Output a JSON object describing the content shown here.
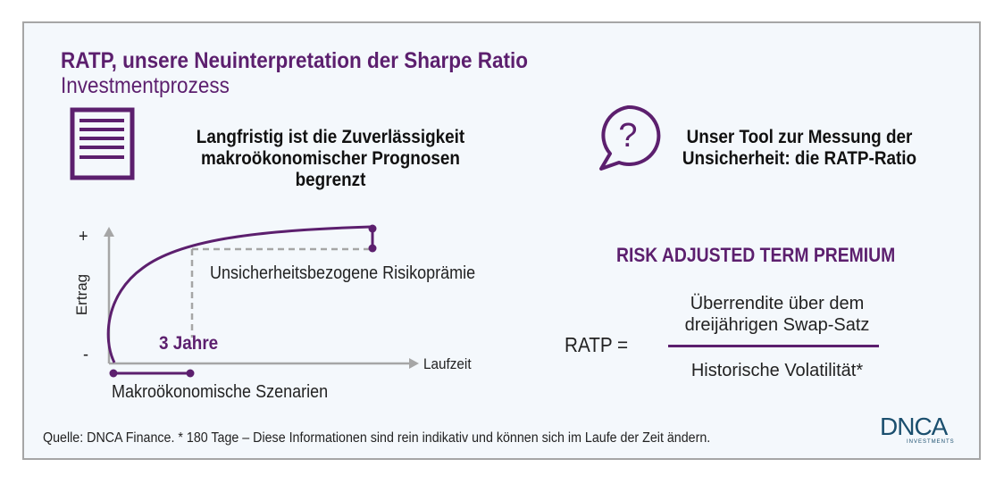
{
  "header": {
    "title": "RATP, unsere Neuinterpretation der Sharpe Ratio",
    "subtitle": "Investmentprozess"
  },
  "left_block": {
    "icon": "document-lines-icon",
    "text_line1": "Langfristig ist die Zuverlässigkeit",
    "text_line2": "makroökonomischer Prognosen begrenzt"
  },
  "right_block": {
    "icon": "question-speech-bubble-icon",
    "text_line1": "Unser Tool zur Messung der",
    "text_line2": "Unsicherheit: die RATP-Ratio"
  },
  "diagram": {
    "y_axis_label": "Ertrag",
    "y_plus": "+",
    "y_minus": "-",
    "x_axis_label": "Laufzeit",
    "marker_label": "3 Jahre",
    "premium_label": "Unsicherheitsbezogene Risikoprämie",
    "range_label": "Makroökonomische Szenarien"
  },
  "formula": {
    "heading": "RISK ADJUSTED TERM PREMIUM",
    "lhs": "RATP =",
    "numerator_line1": "Überrendite über dem",
    "numerator_line2": "dreijährigen Swap-Satz",
    "denominator": "Historische Volatilität*"
  },
  "footer": {
    "source": "Quelle: DNCA Finance. * 180 Tage – Diese Informationen sind rein indikativ und können sich im Laufe der Zeit ändern.",
    "logo_text": "DNCA",
    "logo_subtext": "INVESTMENTS"
  },
  "colors": {
    "accent": "#5c1f6e",
    "axis": "#a6a6a6",
    "logo": "#1b4f6e",
    "background": "#f4f8fc"
  }
}
